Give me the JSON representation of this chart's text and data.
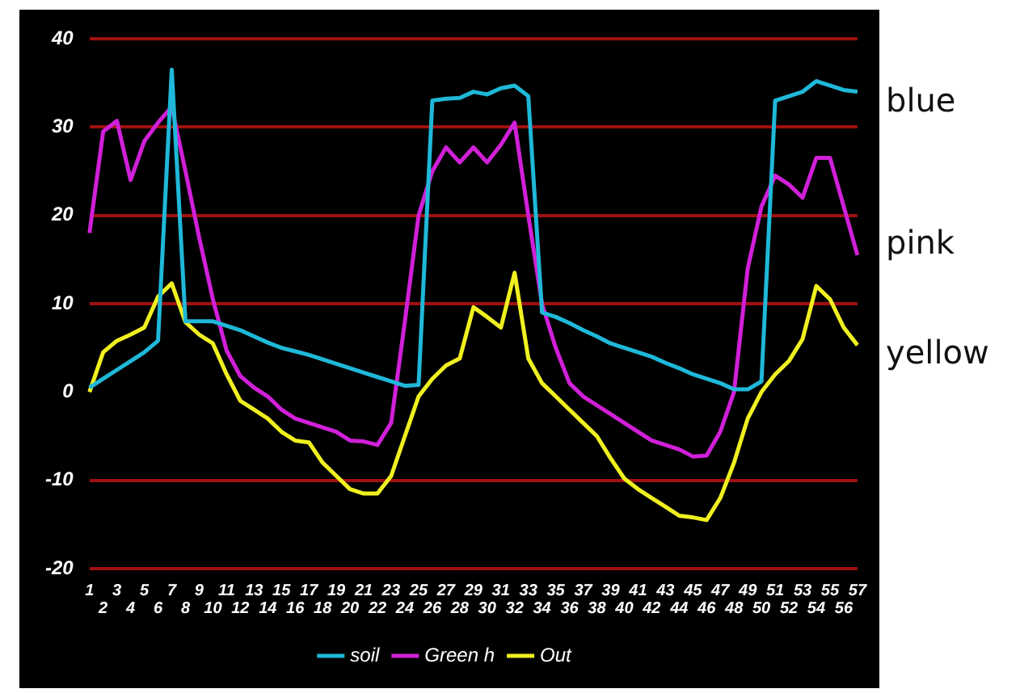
{
  "chart_data": {
    "type": "line",
    "categories": [
      "1",
      "2",
      "3",
      "4",
      "5",
      "6",
      "7",
      "8",
      "9",
      "10",
      "11",
      "12",
      "13",
      "14",
      "15",
      "16",
      "17",
      "18",
      "19",
      "20",
      "21",
      "22",
      "23",
      "24",
      "25",
      "26",
      "27",
      "28",
      "29",
      "30",
      "31",
      "32",
      "33",
      "34",
      "35",
      "36",
      "37",
      "38",
      "39",
      "40",
      "41",
      "42",
      "43",
      "44",
      "45",
      "46",
      "47",
      "48",
      "49",
      "50",
      "51",
      "52",
      "53",
      "54",
      "55",
      "56",
      "57"
    ],
    "series": [
      {
        "name": "soil",
        "color": "#1fb8d8",
        "values": [
          0.5,
          1.5,
          2.5,
          3.5,
          4.5,
          5.8,
          36.5,
          8,
          8,
          8,
          7.5,
          7,
          6.3,
          5.6,
          5,
          4.6,
          4.2,
          3.7,
          3.2,
          2.7,
          2.2,
          1.7,
          1.2,
          0.7,
          0.8,
          33,
          33.2,
          33.3,
          34,
          33.7,
          34.4,
          34.7,
          33.5,
          9,
          8.5,
          7.8,
          7,
          6.3,
          5.5,
          5,
          4.5,
          4,
          3.3,
          2.7,
          2,
          1.5,
          1,
          0.3,
          0.3,
          1.2,
          33,
          33.5,
          34,
          35.2,
          34.7,
          34.2,
          34
        ]
      },
      {
        "name": "Green h",
        "color": "#d020d8",
        "values": [
          18,
          29.5,
          30.7,
          24,
          28.4,
          30.5,
          32.3,
          25,
          17.5,
          10.5,
          4.7,
          1.8,
          0.5,
          -0.5,
          -2,
          -3,
          -3.5,
          -4,
          -4.5,
          -5.5,
          -5.6,
          -6,
          -3.5,
          8,
          20,
          25,
          27.7,
          26,
          27.7,
          26,
          28,
          30.5,
          20,
          10,
          5,
          1,
          -0.5,
          -1.5,
          -2.5,
          -3.5,
          -4.5,
          -5.5,
          -6,
          -6.5,
          -7.3,
          -7.2,
          -4.5,
          0,
          14,
          21,
          24.5,
          23.5,
          22,
          26.5,
          26.5,
          21,
          15.5
        ]
      },
      {
        "name": "Out",
        "color": "#f0f020",
        "values": [
          0,
          4.5,
          5.8,
          6.5,
          7.3,
          10.8,
          12.3,
          7.9,
          6.5,
          5.5,
          2,
          -1,
          -2,
          -3,
          -4.5,
          -5.5,
          -5.7,
          -8,
          -9.5,
          -11,
          -11.5,
          -11.5,
          -9.5,
          -5,
          -0.5,
          1.5,
          3,
          3.8,
          9.6,
          8.5,
          7.3,
          13.5,
          3.8,
          1,
          -0.5,
          -2,
          -3.5,
          -5,
          -7.5,
          -9.8,
          -11,
          -12,
          -13,
          -14,
          -14.2,
          -14.5,
          -12,
          -8,
          -3,
          0,
          2,
          3.5,
          6,
          12,
          10.5,
          7.3,
          5.3
        ]
      }
    ],
    "ylim": [
      -20,
      40
    ],
    "yticks": [
      -20,
      -10,
      0,
      10,
      20,
      30,
      40
    ],
    "grid": "y",
    "legend": "bottom",
    "marker": "none",
    "line_style": "solid",
    "annotations": [
      "blue",
      "pink",
      "yellow"
    ]
  }
}
